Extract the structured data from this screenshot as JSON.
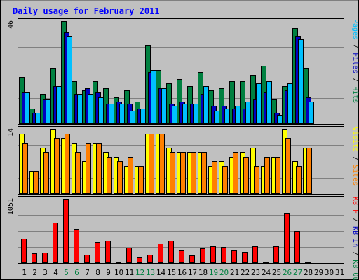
{
  "chart_data": {
    "type": "bar",
    "title": "Daily usage for February 2011",
    "days": [
      "1",
      "2",
      "3",
      "4",
      "5",
      "6",
      "7",
      "8",
      "9",
      "10",
      "11",
      "12",
      "13",
      "14",
      "15",
      "16",
      "17",
      "18",
      "19",
      "20",
      "21",
      "22",
      "23",
      "24",
      "25",
      "26",
      "27",
      "28",
      "29",
      "30",
      "31"
    ],
    "weekend_days": [
      "5",
      "6",
      "12",
      "13",
      "19",
      "20",
      "26",
      "27"
    ],
    "panels": [
      {
        "id": "top",
        "max_label": "46",
        "axis_label_parts": [
          {
            "text": "Pages",
            "color": "#00c0ff"
          },
          {
            "text": " / ",
            "color": "#000000"
          },
          {
            "text": "Files",
            "color": "#0000c0"
          },
          {
            "text": " / ",
            "color": "#000000"
          },
          {
            "text": "Hits",
            "color": "#008040"
          }
        ],
        "ylim": [
          0,
          46
        ],
        "series": [
          {
            "name": "Hits",
            "color": "#008040",
            "values": [
              21,
              7,
              13,
              25,
              46,
              19,
              15,
              19,
              16,
              12,
              15,
              10,
              35,
              24,
              18,
              20,
              17,
              23,
              15,
              16,
              19,
              19,
              22,
              26,
              11,
              17,
              43,
              25
            ]
          },
          {
            "name": "Files",
            "color": "#0000c0",
            "values": [
              14,
              5,
              11,
              17,
              41,
              13,
              16,
              14,
              9,
              10,
              9,
              7,
              23,
              16,
              9,
              10,
              9,
              13,
              8,
              8,
              7,
              7,
              11,
              14,
              5,
              15,
              39,
              12
            ]
          },
          {
            "name": "Pages",
            "color": "#00c0ff",
            "values": [
              14,
              5,
              11,
              17,
              39,
              13,
              13,
              12,
              9,
              9,
              6,
              7,
              24,
              16,
              8,
              9,
              9,
              17,
              6,
              7,
              8,
              10,
              18,
              19,
              4,
              18,
              38,
              10
            ]
          }
        ]
      },
      {
        "id": "middle",
        "max_label": "14",
        "axis_label_parts": [
          {
            "text": "Visits",
            "color": "#ffff00"
          },
          {
            "text": " / ",
            "color": "#000000"
          },
          {
            "text": "Sites",
            "color": "#ff8000"
          }
        ],
        "ylim": [
          0,
          14
        ],
        "series": [
          {
            "name": "Visits",
            "color": "#ffff00",
            "values": [
              13,
              5,
              10,
              14,
              12,
              11,
              7,
              11,
              9,
              8,
              6,
              6,
              13,
              13,
              10,
              9,
              9,
              9,
              6,
              7,
              8,
              9,
              10,
              6,
              8,
              14,
              7,
              10
            ]
          },
          {
            "name": "Sites",
            "color": "#ff8000",
            "values": [
              11,
              5,
              9,
              12,
              13,
              9,
              11,
              11,
              8,
              7,
              8,
              6,
              13,
              13,
              9,
              9,
              9,
              9,
              7,
              6,
              9,
              8,
              6,
              8,
              8,
              12,
              6,
              10
            ]
          }
        ]
      },
      {
        "id": "bottom",
        "max_label": "1051",
        "axis_label_parts": [
          {
            "text": "KB F",
            "color": "#ff0000"
          },
          {
            "text": " / ",
            "color": "#000000"
          },
          {
            "text": "KB In",
            "color": "#0000c0"
          },
          {
            "text": " / ",
            "color": "#000000"
          },
          {
            "text": "KB Out",
            "color": "#008040"
          }
        ],
        "ylim": [
          0,
          1051
        ],
        "series": [
          {
            "name": "KB F",
            "color": "#ff0000",
            "values": [
              400,
              160,
              170,
              660,
              1051,
              560,
              140,
              340,
              360,
              20,
              250,
              100,
              140,
              320,
              370,
              220,
              120,
              240,
              270,
              260,
              220,
              180,
              270,
              20,
              270,
              820,
              530,
              20
            ]
          }
        ]
      }
    ]
  }
}
